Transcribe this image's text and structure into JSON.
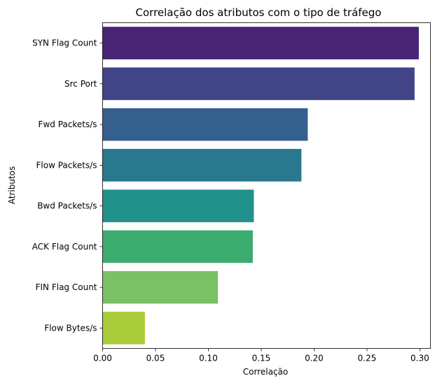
{
  "chart_data": {
    "type": "bar",
    "orientation": "horizontal",
    "title": "Correlação dos atributos com o tipo de tráfego",
    "xlabel": "Correlação",
    "ylabel": "Atributos",
    "categories": [
      "SYN Flag Count",
      "Src Port",
      "Fwd Packets/s",
      "Flow Packets/s",
      "Bwd Packets/s",
      "ACK Flag Count",
      "FIN Flag Count",
      "Flow Bytes/s"
    ],
    "values": [
      0.299,
      0.295,
      0.194,
      0.188,
      0.143,
      0.142,
      0.109,
      0.04
    ],
    "colors": [
      "#482475",
      "#414487",
      "#355f8d",
      "#2a788e",
      "#21918c",
      "#3bac6e",
      "#7ac165",
      "#aacb3a"
    ],
    "xlim": [
      0,
      0.31
    ],
    "xticks": [
      0.0,
      0.05,
      0.1,
      0.15,
      0.2,
      0.25,
      0.3
    ],
    "xtick_labels": [
      "0.00",
      "0.05",
      "0.10",
      "0.15",
      "0.20",
      "0.25",
      "0.30"
    ],
    "grid": false,
    "legend": false
  }
}
